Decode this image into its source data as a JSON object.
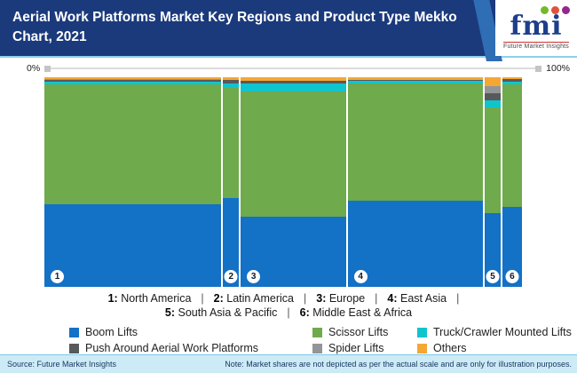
{
  "header": {
    "title": "Aerial Work Platforms Market Key Regions and Product Type Mekko Chart, 2021",
    "background_color": "#1B3A7C",
    "stripe_color": "#2F6DB5",
    "logo": {
      "text": "fmi",
      "text_color": "#1E3E8C",
      "tagline": "Future Market Insights",
      "dot_colors": [
        "#76B82A",
        "#E1523D",
        "#93278F"
      ]
    }
  },
  "scale_bar": {
    "left_label": "0%",
    "right_label": "100%"
  },
  "chart_data": {
    "type": "mekko",
    "title": "Aerial Work Platforms Market Key Regions and Product Type Mekko Chart, 2021",
    "xlabel": "Key Regions (column width = region share, 0% to 100%)",
    "ylabel": "Product Type share of region (stacked to 100%)",
    "categories": [
      "North America",
      "Latin America",
      "Europe",
      "East Asia",
      "South Asia & Pacific",
      "Middle East & Africa"
    ],
    "column_numbers": [
      "1",
      "2",
      "3",
      "4",
      "5",
      "6"
    ],
    "column_widths_pct": [
      37.0,
      3.3,
      22.0,
      28.3,
      3.3,
      4.1
    ],
    "series": [
      {
        "name": "Boom Lifts",
        "color": "#1371C6",
        "values": [
          39.4,
          42.4,
          33.5,
          41.1,
          35.2,
          38.1
        ]
      },
      {
        "name": "Scissor Lifts",
        "color": "#6FAA4C",
        "values": [
          57.2,
          52.5,
          59.7,
          55.9,
          50.4,
          58.5
        ]
      },
      {
        "name": "Truck/Crawler Mounted Lifts",
        "color": "#10C4CE",
        "values": [
          1.3,
          2.1,
          3.8,
          1.1,
          3.4,
          1.3
        ]
      },
      {
        "name": "Push Around Aerial Work Platforms",
        "color": "#58595B",
        "values": [
          0.9,
          1.7,
          1.3,
          0.6,
          3.4,
          1.3
        ]
      },
      {
        "name": "Spider Lifts",
        "color": "#939598",
        "values": [
          0.5,
          0.0,
          0.0,
          0.0,
          3.4,
          0.0
        ]
      },
      {
        "name": "Others",
        "color": "#F5A733",
        "values": [
          0.7,
          1.3,
          1.7,
          1.3,
          4.2,
          0.8
        ]
      }
    ],
    "stack_order_top_to_bottom": [
      "Others",
      "Spider Lifts",
      "Push Around Aerial Work Platforms",
      "Truck/Crawler Mounted Lifts",
      "Scissor Lifts",
      "Boom Lifts"
    ],
    "legend_position": "bottom",
    "grid": false
  },
  "region_labels": {
    "separator": "|",
    "line1": [
      {
        "num": "1:",
        "name": "North America"
      },
      {
        "num": "2:",
        "name": "Latin America"
      },
      {
        "num": "3:",
        "name": "Europe"
      },
      {
        "num": "4:",
        "name": "East Asia"
      }
    ],
    "line1_trailing_separator": "|",
    "line2": [
      {
        "num": "5:",
        "name": "South Asia & Pacific"
      },
      {
        "num": "6:",
        "name": "Middle East & Africa"
      }
    ]
  },
  "legend": {
    "rows": [
      [
        {
          "label": "Boom Lifts",
          "color": "#1371C6"
        },
        {
          "label": "Scissor Lifts",
          "color": "#6FAA4C"
        },
        {
          "label": "Truck/Crawler Mounted Lifts",
          "color": "#10C4CE"
        }
      ],
      [
        {
          "label": "Push Around Aerial Work Platforms",
          "color": "#58595B"
        },
        {
          "label": "Spider Lifts",
          "color": "#939598"
        },
        {
          "label": "Others",
          "color": "#F5A733"
        }
      ]
    ]
  },
  "footer": {
    "source": "Source: Future Market Insights",
    "note": "Note: Market shares are not depicted as per the actual scale and are only for illustration purposes.",
    "background_color": "#CDEBF6"
  }
}
